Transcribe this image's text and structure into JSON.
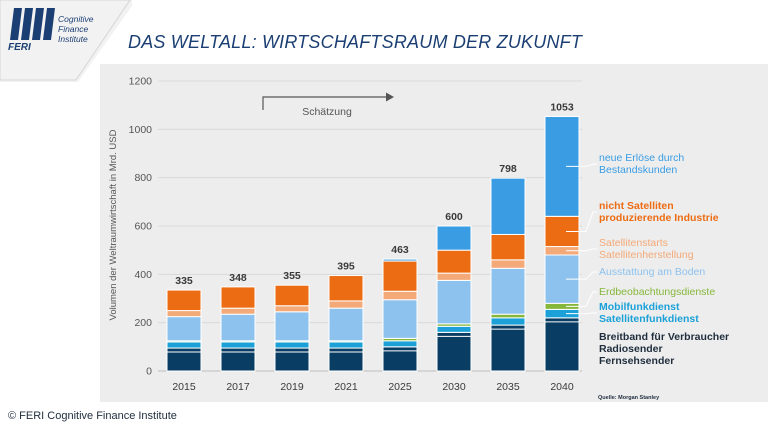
{
  "logo": {
    "brand": "FERI",
    "line1": "Cognitive",
    "line2": "Finance",
    "line3": "Institute"
  },
  "title": "DAS WELTALL: WIRTSCHAFTSRAUM DER ZUKUNFT",
  "estimate_label": "Schätzung",
  "copyright": "© FERI Cognitive Finance Institute",
  "source": "Quelle: Morgan Stanley",
  "colors": {
    "breitband": "#0a3d63",
    "mobilfunk": "#1ba1d8",
    "erdbeobachtung": "#86b73b",
    "ausstattung": "#8ec2ee",
    "starts": "#f3a978",
    "industrie": "#ec6c14",
    "neu": "#3a9de3",
    "panel": "#ededed"
  },
  "chart_data": {
    "type": "bar",
    "stacked": true,
    "ylabel": "Volumen der Weltraumwirtschaft in Mrd. USD",
    "ylim": [
      0,
      1200
    ],
    "yticks": [
      0,
      200,
      400,
      600,
      800,
      1000,
      1200
    ],
    "grid": true,
    "legend_position": "right",
    "categories": [
      "2015",
      "2017",
      "2019",
      "2021",
      "2025",
      "2030",
      "2035",
      "2040"
    ],
    "totals": [
      335,
      348,
      355,
      395,
      463,
      600,
      798,
      1053
    ],
    "series": [
      {
        "name": "Breitband für Verbraucher Radiosender Fernsehsender",
        "legend_lines": [
          "Breitband für Verbraucher",
          "Radiosender",
          "Fernsehsender"
        ],
        "color_key": "breitband",
        "values": [
          95,
          95,
          95,
          95,
          100,
          160,
          190,
          220
        ]
      },
      {
        "name": "Mobilfunkdienst Satellitenfunkdienst",
        "legend_lines": [
          "Mobilfunkdienst",
          "Satellitenfunkdienst"
        ],
        "color_key": "mobilfunk",
        "values": [
          25,
          25,
          25,
          25,
          25,
          25,
          30,
          35
        ]
      },
      {
        "name": "Erdbeobachtungsdienste",
        "legend_lines": [
          "Erdbeobachtungsdienste"
        ],
        "color_key": "erdbeobachtung",
        "values": [
          5,
          5,
          5,
          5,
          10,
          10,
          15,
          25
        ]
      },
      {
        "name": "Ausstattung am Boden",
        "legend_lines": [
          "Ausstattung am Boden"
        ],
        "color_key": "ausstattung",
        "values": [
          100,
          110,
          120,
          135,
          160,
          180,
          190,
          200
        ]
      },
      {
        "name": "Satellitenstarts Satellitenherstellung",
        "legend_lines": [
          "Satellitenstarts",
          "Satellitenherstellung"
        ],
        "color_key": "starts",
        "values": [
          25,
          25,
          25,
          30,
          35,
          30,
          35,
          35
        ]
      },
      {
        "name": "nicht Satelliten produzierende Industrie",
        "legend_lines": [
          "nicht Satelliten",
          "produzierende Industrie"
        ],
        "color_key": "industrie",
        "values": [
          85,
          88,
          85,
          105,
          125,
          95,
          105,
          125
        ]
      },
      {
        "name": "neue Erlöse durch Bestandskunden",
        "legend_lines": [
          "neue Erlöse durch",
          "Bestandskunden"
        ],
        "color_key": "neu",
        "values": [
          0,
          0,
          0,
          0,
          8,
          100,
          233,
          413
        ]
      }
    ]
  },
  "legend": [
    {
      "lines": [
        "neue Erlöse durch",
        "Bestandskunden"
      ],
      "color_key": "neu",
      "anchor_series": 6,
      "bold": false
    },
    {
      "lines": [
        "nicht Satelliten",
        "produzierende Industrie"
      ],
      "color_key": "industrie",
      "anchor_series": 5,
      "bold": true
    },
    {
      "lines": [
        "Satellitenstarts",
        "Satellitenherstellung"
      ],
      "color_key": "starts",
      "anchor_series": 4,
      "bold": false
    },
    {
      "lines": [
        "Ausstattung am Boden"
      ],
      "color_key": "ausstattung",
      "anchor_series": 3,
      "bold": false
    },
    {
      "lines": [
        "Erdbeobachtungsdienste"
      ],
      "color_key": "erdbeobachtung",
      "anchor_series": 2,
      "bold": false
    },
    {
      "lines": [
        "Mobilfunkdienst",
        "Satellitenfunkdienst"
      ],
      "color_key": "mobilfunk",
      "anchor_series": 1,
      "bold": true
    },
    {
      "lines": [
        "Breitband für Verbraucher",
        "Radiosender",
        "Fernsehsender"
      ],
      "color_key": "breitband",
      "anchor_series": 0,
      "bold": true,
      "text_color": "#1f2d3d"
    }
  ]
}
